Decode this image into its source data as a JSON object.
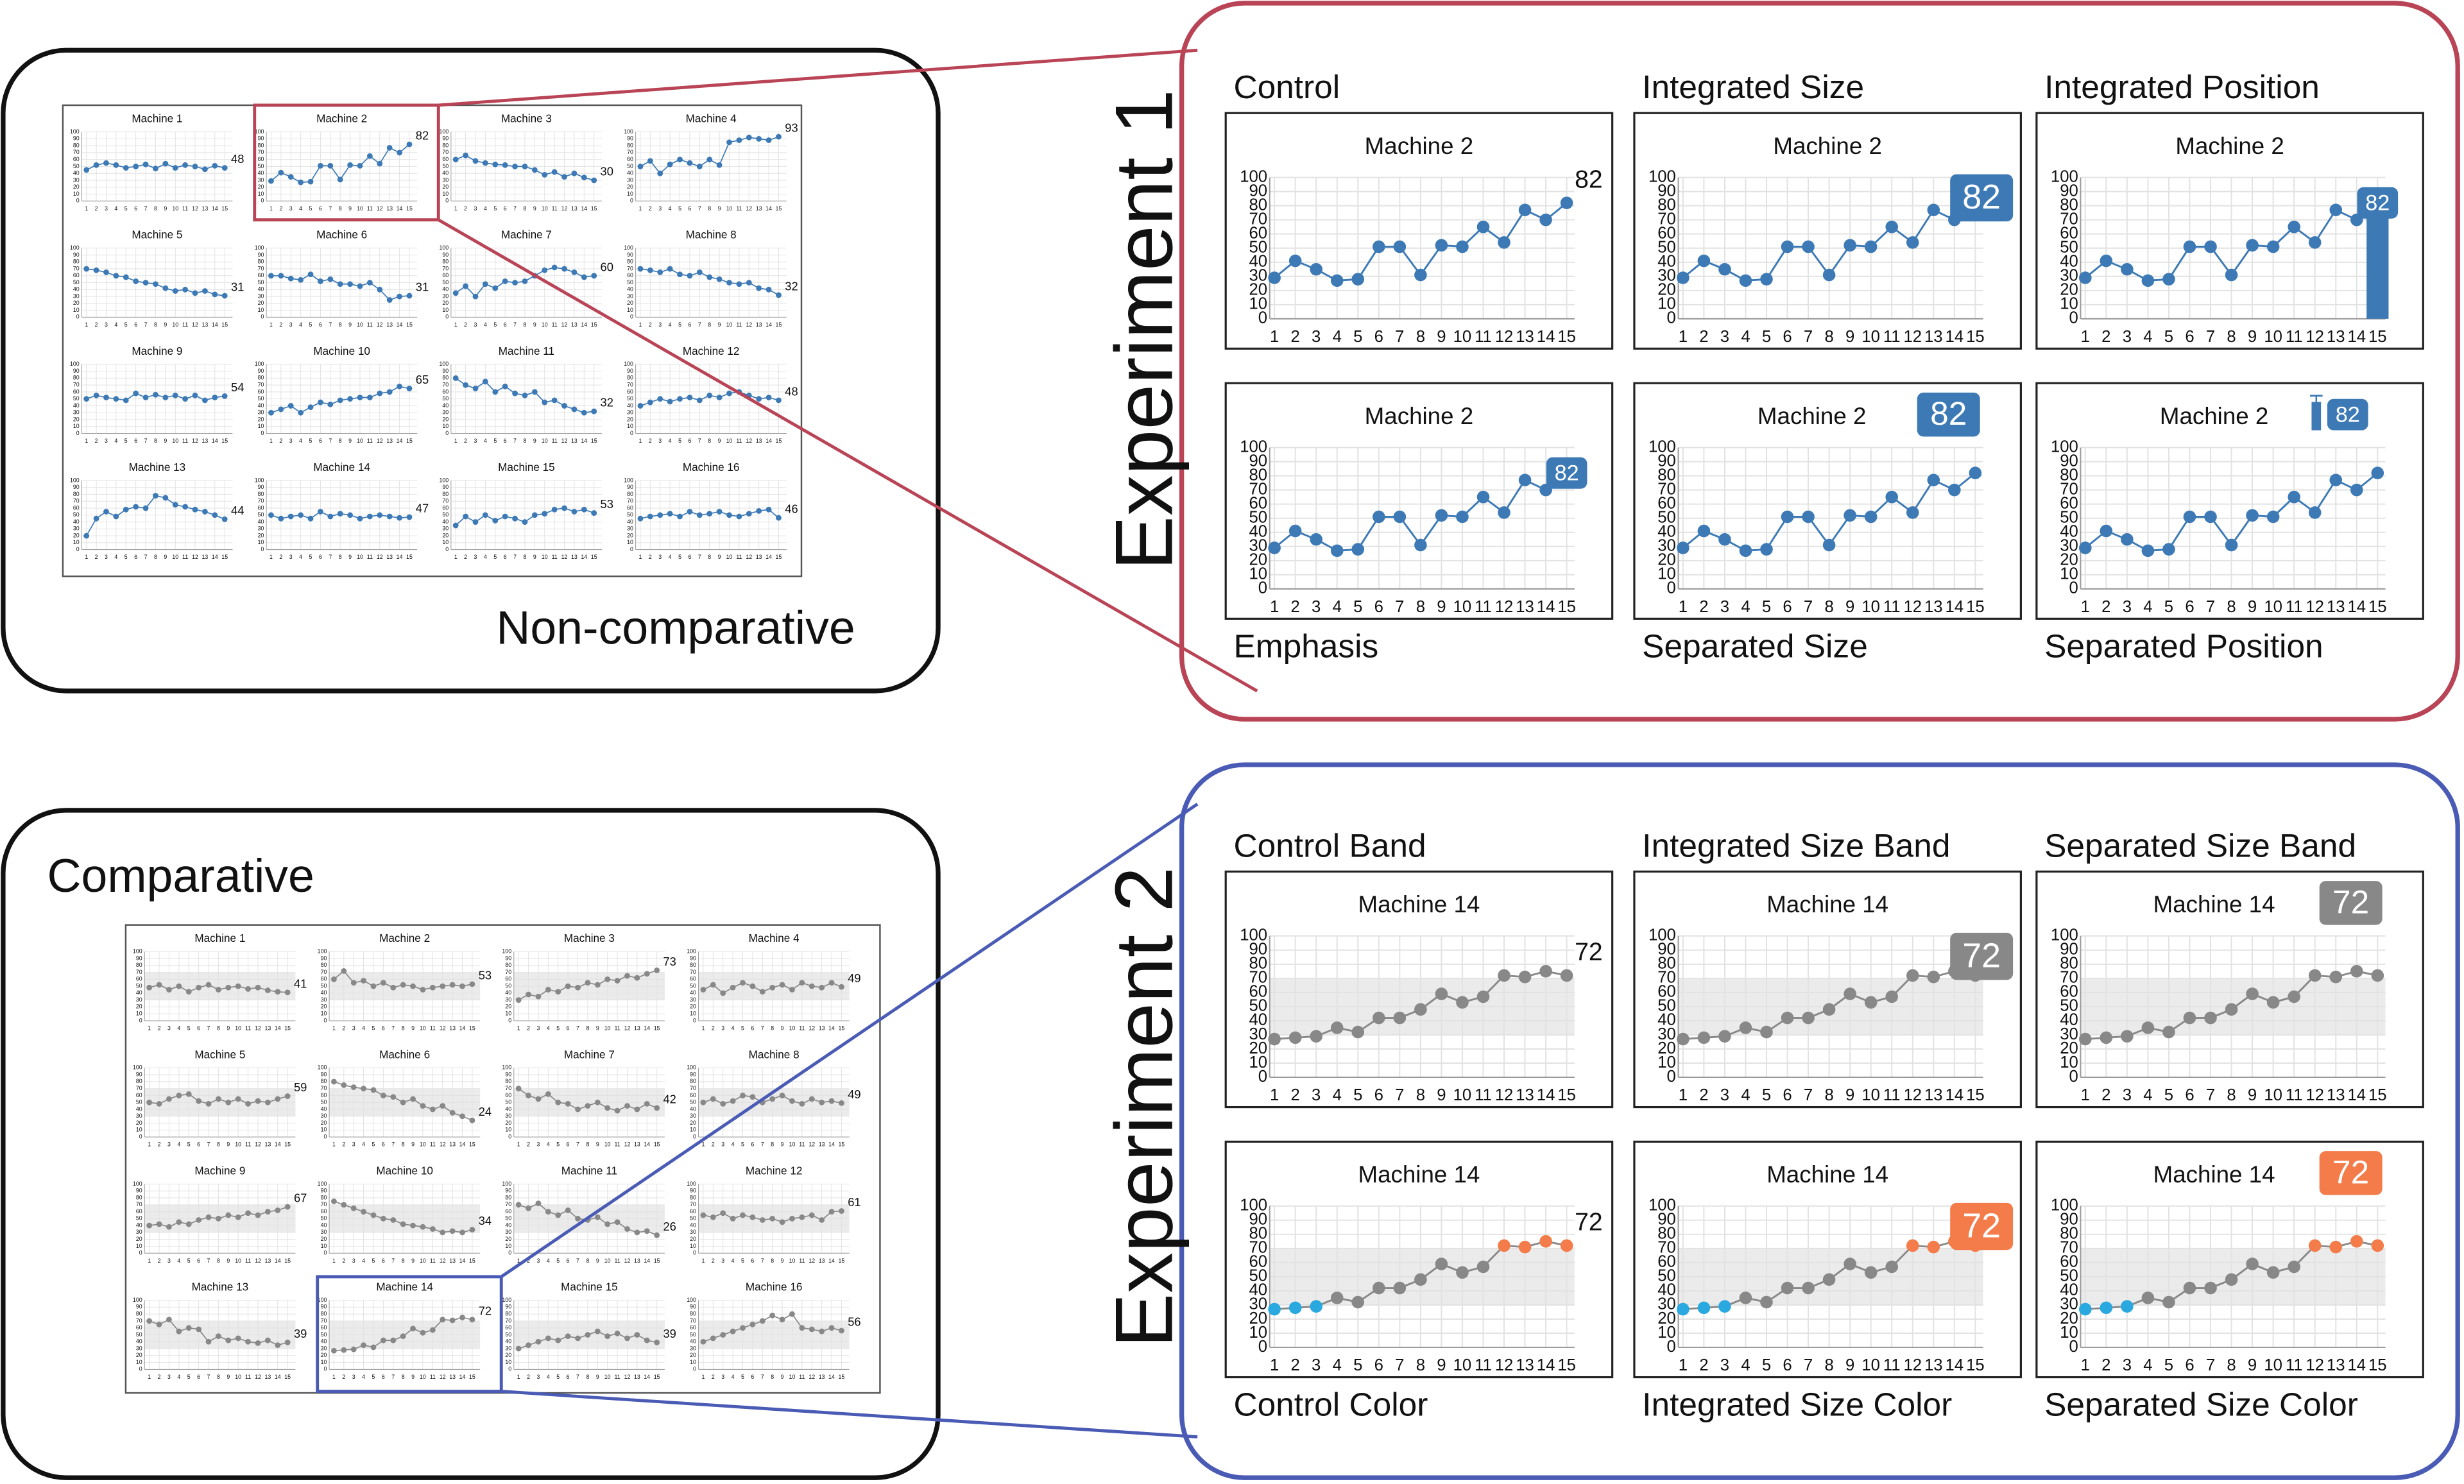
{
  "shared": {
    "xlim": [
      1,
      15
    ],
    "xticks": [
      1,
      2,
      3,
      4,
      5,
      6,
      7,
      8,
      9,
      10,
      11,
      12,
      13,
      14,
      15
    ],
    "ylim": [
      0,
      100
    ],
    "yticks": [
      0,
      10,
      20,
      30,
      40,
      50,
      60,
      70,
      80,
      90,
      100
    ]
  },
  "overview": [
    {
      "label": "Non-comparative",
      "color": "#3d7ab5",
      "machines": [
        {
          "title": "Machine 1",
          "values": [
            45,
            52,
            55,
            52,
            48,
            50,
            53,
            47,
            54,
            48,
            52,
            50,
            46,
            51,
            48
          ]
        },
        {
          "title": "Machine 2",
          "values": [
            29,
            41,
            35,
            27,
            28,
            51,
            51,
            31,
            52,
            51,
            65,
            54,
            77,
            70,
            82
          ]
        },
        {
          "title": "Machine 3",
          "values": [
            60,
            66,
            58,
            55,
            53,
            52,
            50,
            50,
            45,
            38,
            42,
            35,
            40,
            34,
            30
          ]
        },
        {
          "title": "Machine 4",
          "values": [
            50,
            58,
            40,
            53,
            60,
            55,
            50,
            60,
            52,
            85,
            88,
            92,
            90,
            88,
            93
          ]
        },
        {
          "title": "Machine 5",
          "values": [
            70,
            68,
            65,
            60,
            58,
            52,
            50,
            48,
            42,
            38,
            40,
            35,
            38,
            33,
            31
          ]
        },
        {
          "title": "Machine 6",
          "values": [
            60,
            60,
            56,
            54,
            62,
            52,
            55,
            48,
            48,
            45,
            50,
            40,
            25,
            30,
            31
          ]
        },
        {
          "title": "Machine 7",
          "values": [
            35,
            45,
            30,
            48,
            42,
            52,
            50,
            52,
            60,
            68,
            72,
            70,
            65,
            58,
            60
          ]
        },
        {
          "title": "Machine 8",
          "values": [
            70,
            68,
            65,
            70,
            62,
            60,
            65,
            58,
            55,
            50,
            48,
            50,
            42,
            40,
            32
          ]
        },
        {
          "title": "Machine 9",
          "values": [
            50,
            55,
            52,
            50,
            48,
            58,
            52,
            56,
            52,
            55,
            50,
            55,
            48,
            52,
            54
          ]
        },
        {
          "title": "Machine 10",
          "values": [
            30,
            35,
            40,
            30,
            38,
            45,
            42,
            48,
            50,
            52,
            52,
            58,
            60,
            68,
            65
          ]
        },
        {
          "title": "Machine 11",
          "values": [
            80,
            70,
            65,
            75,
            60,
            68,
            58,
            55,
            60,
            45,
            48,
            40,
            35,
            30,
            32
          ]
        },
        {
          "title": "Machine 12",
          "values": [
            40,
            45,
            50,
            46,
            50,
            52,
            48,
            55,
            52,
            58,
            60,
            55,
            50,
            52,
            48
          ]
        },
        {
          "title": "Machine 13",
          "values": [
            20,
            45,
            55,
            48,
            58,
            62,
            60,
            78,
            75,
            65,
            62,
            58,
            55,
            50,
            44
          ]
        },
        {
          "title": "Machine 14",
          "values": [
            50,
            45,
            48,
            50,
            45,
            55,
            48,
            52,
            50,
            45,
            48,
            50,
            48,
            46,
            47
          ]
        },
        {
          "title": "Machine 15",
          "values": [
            35,
            48,
            40,
            50,
            42,
            48,
            45,
            40,
            50,
            52,
            58,
            60,
            55,
            58,
            53
          ]
        },
        {
          "title": "Machine 16",
          "values": [
            45,
            48,
            50,
            52,
            48,
            55,
            50,
            52,
            55,
            50,
            48,
            52,
            56,
            58,
            46
          ]
        }
      ]
    },
    {
      "label": "Comparative",
      "color": "#888888",
      "band": [
        30,
        70
      ],
      "machines": [
        {
          "title": "Machine 1",
          "values": [
            48,
            52,
            45,
            50,
            42,
            48,
            52,
            45,
            48,
            50,
            46,
            48,
            44,
            42,
            41
          ]
        },
        {
          "title": "Machine 2",
          "values": [
            60,
            72,
            55,
            58,
            50,
            55,
            48,
            52,
            50,
            45,
            48,
            50,
            52,
            50,
            53
          ]
        },
        {
          "title": "Machine 3",
          "values": [
            30,
            38,
            35,
            45,
            42,
            50,
            48,
            55,
            52,
            60,
            58,
            65,
            62,
            68,
            73
          ]
        },
        {
          "title": "Machine 4",
          "values": [
            45,
            52,
            40,
            48,
            55,
            50,
            42,
            48,
            52,
            45,
            55,
            50,
            48,
            55,
            49
          ]
        },
        {
          "title": "Machine 5",
          "values": [
            50,
            48,
            55,
            60,
            62,
            52,
            48,
            55,
            50,
            55,
            48,
            52,
            50,
            55,
            59
          ]
        },
        {
          "title": "Machine 6",
          "values": [
            80,
            75,
            72,
            70,
            68,
            60,
            58,
            50,
            55,
            45,
            40,
            45,
            35,
            30,
            24
          ]
        },
        {
          "title": "Machine 7",
          "values": [
            70,
            60,
            55,
            62,
            50,
            48,
            40,
            45,
            50,
            42,
            38,
            45,
            40,
            48,
            42
          ]
        },
        {
          "title": "Machine 8",
          "values": [
            50,
            55,
            48,
            52,
            60,
            58,
            50,
            55,
            60,
            52,
            48,
            55,
            50,
            52,
            49
          ]
        },
        {
          "title": "Machine 9",
          "values": [
            40,
            42,
            38,
            45,
            42,
            48,
            52,
            50,
            55,
            52,
            58,
            55,
            60,
            62,
            67
          ]
        },
        {
          "title": "Machine 10",
          "values": [
            75,
            70,
            65,
            60,
            55,
            50,
            48,
            42,
            40,
            38,
            35,
            30,
            32,
            30,
            34
          ]
        },
        {
          "title": "Machine 11",
          "values": [
            70,
            65,
            72,
            60,
            55,
            62,
            50,
            48,
            52,
            42,
            45,
            35,
            30,
            32,
            26
          ]
        },
        {
          "title": "Machine 12",
          "values": [
            55,
            52,
            58,
            50,
            55,
            52,
            48,
            50,
            45,
            50,
            52,
            55,
            48,
            60,
            61
          ]
        },
        {
          "title": "Machine 13",
          "values": [
            70,
            65,
            72,
            55,
            60,
            58,
            40,
            48,
            42,
            45,
            40,
            38,
            42,
            35,
            39
          ]
        },
        {
          "title": "Machine 14",
          "values": [
            27,
            28,
            29,
            35,
            32,
            42,
            42,
            48,
            59,
            53,
            57,
            72,
            71,
            75,
            72
          ]
        },
        {
          "title": "Machine 15",
          "values": [
            30,
            35,
            40,
            45,
            42,
            48,
            45,
            50,
            55,
            48,
            52,
            45,
            50,
            42,
            39
          ]
        },
        {
          "title": "Machine 16",
          "values": [
            40,
            45,
            50,
            55,
            60,
            65,
            70,
            78,
            72,
            80,
            60,
            58,
            55,
            60,
            56
          ]
        }
      ]
    }
  ],
  "experiments": [
    {
      "label": "Experiment 1",
      "title": "Machine 2",
      "color": "#3d7ab5",
      "values": [
        29,
        41,
        35,
        27,
        28,
        51,
        51,
        31,
        52,
        51,
        65,
        54,
        77,
        70,
        82
      ],
      "conditions": [
        {
          "label": "Control",
          "value_label": "text"
        },
        {
          "label": "Integrated Size",
          "value_label": "box-plot"
        },
        {
          "label": "Integrated Position",
          "value_label": "bar"
        },
        {
          "label": "Emphasis",
          "value_label": "box-point"
        },
        {
          "label": "Separated Size",
          "value_label": "box-title"
        },
        {
          "label": "Separated Position",
          "value_label": "bar-title"
        }
      ]
    },
    {
      "label": "Experiment 2",
      "title": "Machine 14",
      "color": "#888888",
      "band": [
        30,
        70
      ],
      "values": [
        27,
        28,
        29,
        35,
        32,
        42,
        42,
        48,
        59,
        53,
        57,
        72,
        71,
        75,
        72
      ],
      "conditions": [
        {
          "label": "Control Band",
          "value_label": "text"
        },
        {
          "label": "Integrated Size Band",
          "value_label": "box-plot"
        },
        {
          "label": "Separated Size Band",
          "value_label": "box-title"
        },
        {
          "label": "Control Color",
          "value_label": "text",
          "below_color": "#29a9e0",
          "above_color": "#f47c4a"
        },
        {
          "label": "Integrated Size Color",
          "value_label": "box-plot",
          "below_color": "#29a9e0",
          "above_color": "#f47c4a"
        },
        {
          "label": "Separated Size Color",
          "value_label": "box-title",
          "below_color": "#29a9e0",
          "above_color": "#f47c4a"
        }
      ]
    }
  ]
}
